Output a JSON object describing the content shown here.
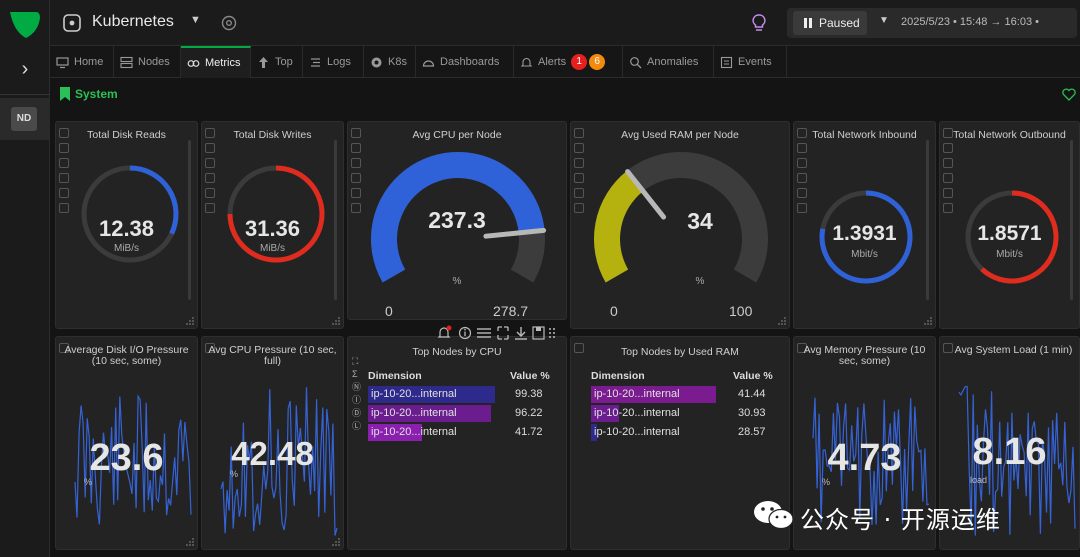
{
  "app": {
    "room_title": "Kubernetes",
    "node_badge": "ND",
    "time_control": {
      "status_label": "Paused",
      "range": "2025/5/23 • 15:48 → 16:03 •"
    }
  },
  "tabs": [
    {
      "label": "Home",
      "icon": "monitor-icon"
    },
    {
      "label": "Nodes",
      "icon": "nodes-icon"
    },
    {
      "label": "Metrics",
      "icon": "metrics-icon",
      "active": true
    },
    {
      "label": "Top",
      "icon": "top-icon"
    },
    {
      "label": "Logs",
      "icon": "logs-icon"
    },
    {
      "label": "K8s",
      "icon": "k8s-icon"
    },
    {
      "label": "Dashboards",
      "icon": "dashboards-icon"
    },
    {
      "label": "Alerts",
      "icon": "bell-icon",
      "badges": [
        "1",
        "6"
      ]
    },
    {
      "label": "Anomalies",
      "icon": "anomalies-icon"
    },
    {
      "label": "Events",
      "icon": "events-icon"
    }
  ],
  "section": {
    "title": "System"
  },
  "colors": {
    "accent": "#00ab44",
    "blue": "#2f62d8",
    "red": "#e02b1f",
    "olive": "#b5b10f",
    "purple": "#8b1fb0"
  },
  "panels": {
    "disk_reads": {
      "title": "Total Disk Reads",
      "value": "12.38",
      "unit": "MiB/s",
      "fill": 0.32
    },
    "disk_writes": {
      "title": "Total Disk Writes",
      "value": "31.36",
      "unit": "MiB/s",
      "fill": 0.75
    },
    "cpu_gauge": {
      "title": "Avg CPU per Node",
      "value": "237.3",
      "unit": "%",
      "min": "0",
      "max": "278.7",
      "fraction": 0.851
    },
    "ram_gauge": {
      "title": "Avg Used RAM per Node",
      "value": "34",
      "unit": "%",
      "min": "0",
      "max": "100",
      "fraction": 0.34
    },
    "net_in": {
      "title": "Total Network Inbound",
      "value": "1.3931",
      "unit": "Mbit/s",
      "fill": 0.78
    },
    "net_out": {
      "title": "Total Network Outbound",
      "value": "1.8571",
      "unit": "Mbit/s",
      "fill": 0.62
    },
    "disk_io_pressure": {
      "title": "Average Disk I/O Pressure (10 sec, some)",
      "value": "23.6",
      "unit": "%"
    },
    "cpu_pressure": {
      "title": "Avg CPU Pressure (10 sec, full)",
      "value": "42.48",
      "unit": "%"
    },
    "top_cpu": {
      "title": "Top Nodes by CPU",
      "headers": {
        "dimension": "Dimension",
        "value": "Value %"
      },
      "rows": [
        {
          "name": "ip-10-20...internal",
          "value": "99.38",
          "pct": 0.995,
          "color": "#2e2a8c"
        },
        {
          "name": "ip-10-20...internal",
          "value": "96.22",
          "pct": 0.96,
          "color": "#6b1d8f"
        },
        {
          "name": "ip-10-20...internal",
          "value": "41.72",
          "pct": 0.42,
          "color": "#8b1fb0"
        }
      ]
    },
    "top_ram": {
      "title": "Top Nodes by Used RAM",
      "headers": {
        "dimension": "Dimension",
        "value": "Value %"
      },
      "rows": [
        {
          "name": "ip-10-20...internal",
          "value": "41.44",
          "pct": 0.98,
          "color": "#7a1b8f"
        },
        {
          "name": "ip-10-20...internal",
          "value": "30.93",
          "pct": 0.22,
          "color": "#6b1d8f"
        },
        {
          "name": "ip-10-20...internal",
          "value": "28.57",
          "pct": 0.05,
          "color": "#2e2a8c"
        }
      ]
    },
    "memory_pressure": {
      "title": "Avg Memory Pressure (10 sec, some)",
      "value": "4.73",
      "unit": "%"
    },
    "system_load": {
      "title": "Avg System Load (1 min)",
      "value": "8.16",
      "unit": "load"
    }
  },
  "watermark": {
    "text": "公众号 · 开源运维"
  }
}
